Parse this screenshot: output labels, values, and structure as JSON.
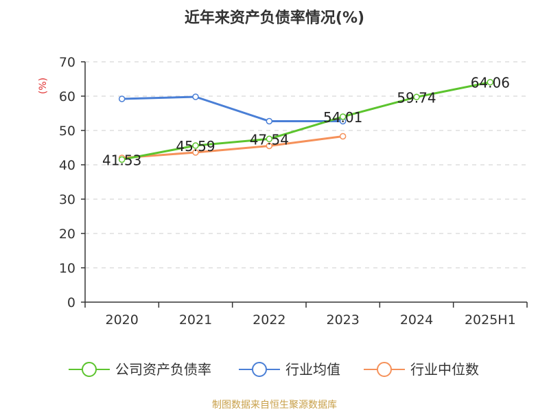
{
  "title": "近年来资产负债率情况(%)",
  "unit_label": "(%)",
  "source": "制图数据来自恒生聚源数据库",
  "chart_data": {
    "type": "line",
    "categories": [
      "2020",
      "2021",
      "2022",
      "2023",
      "2024",
      "2025H1"
    ],
    "ylim": [
      0,
      70
    ],
    "yticks": [
      "0",
      "10",
      "20",
      "30",
      "40",
      "50",
      "60",
      "70"
    ],
    "grid": true,
    "legend_position": "bottom",
    "series": [
      {
        "name": "公司资产负债率",
        "color": "#5cc42e",
        "values": [
          41.53,
          45.59,
          47.54,
          54.01,
          59.74,
          64.06
        ],
        "labels": [
          "41.53",
          "45.59",
          "47.54",
          "54.01",
          "59.74",
          "64.06"
        ]
      },
      {
        "name": "行业均值",
        "color": "#4a7fd6",
        "values": [
          59.2,
          59.8,
          52.7,
          52.7,
          null,
          null
        ]
      },
      {
        "name": "行业中位数",
        "color": "#f5915a",
        "values": [
          42.0,
          43.6,
          45.5,
          48.3,
          null,
          null
        ]
      }
    ]
  }
}
